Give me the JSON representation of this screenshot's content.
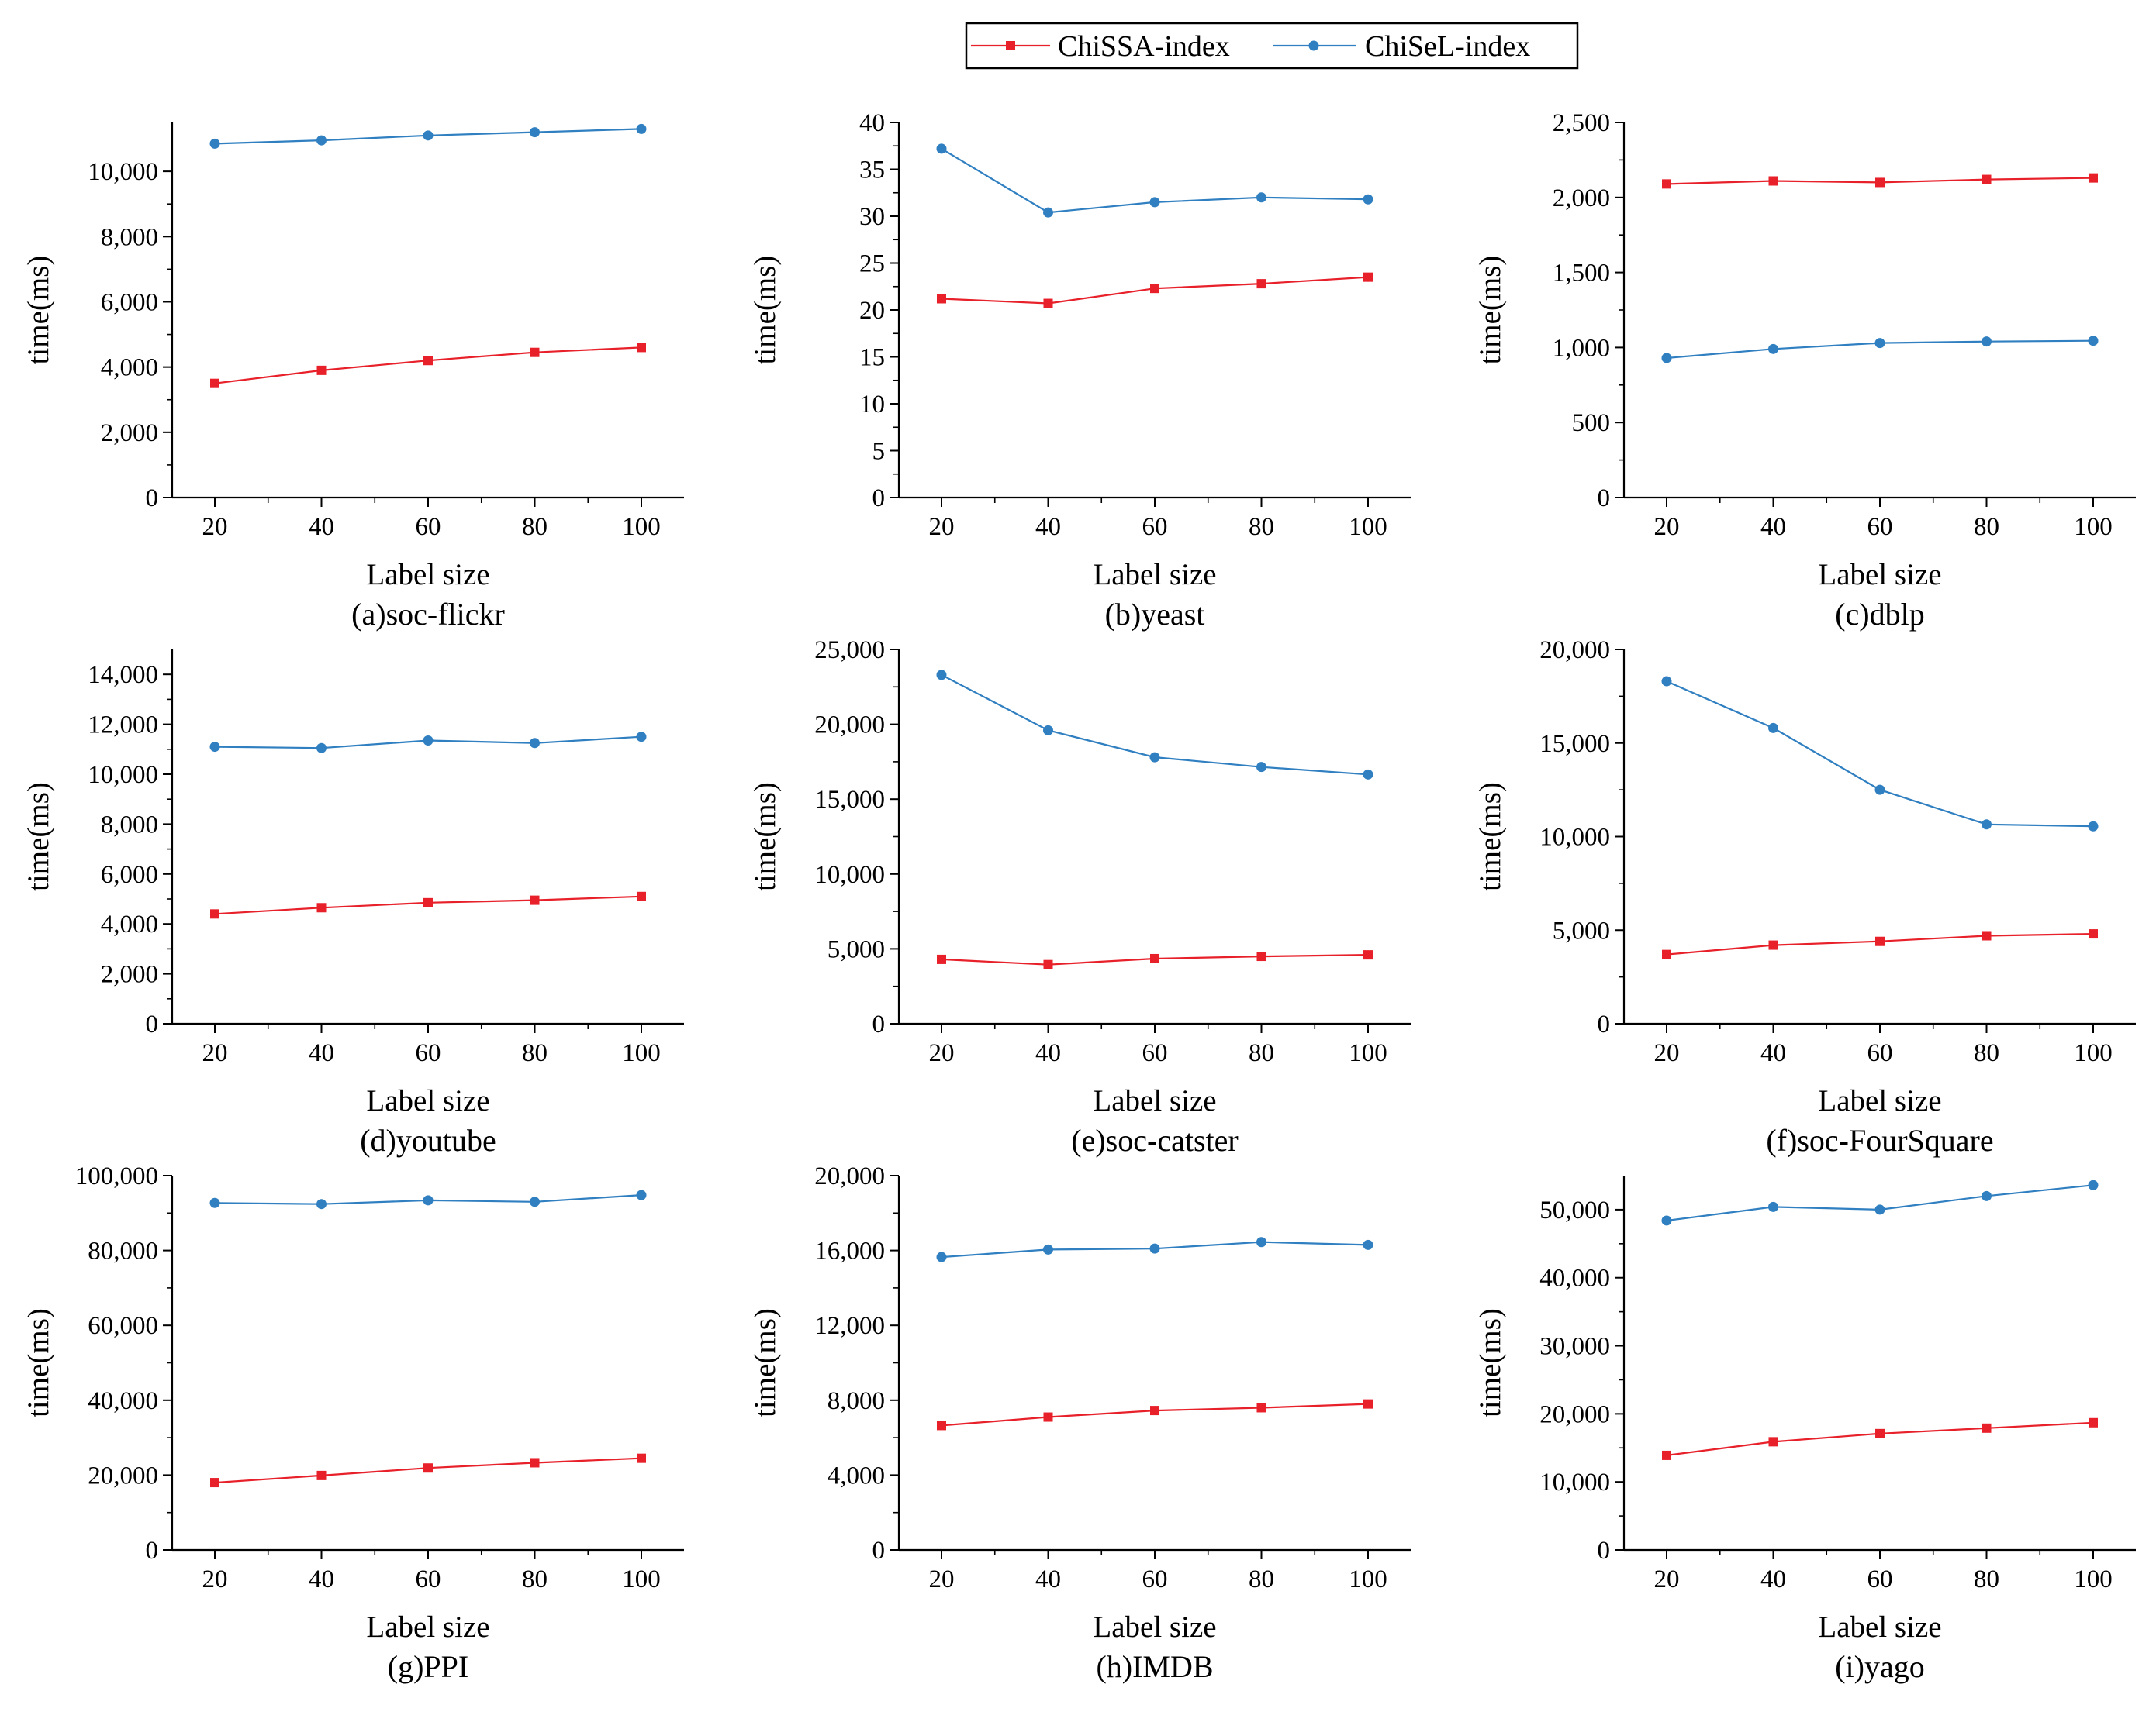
{
  "legend": {
    "entries": [
      {
        "name": "ChiSSA-index",
        "color": "#e8202a",
        "marker": "square"
      },
      {
        "name": "ChiSeL-index",
        "color": "#2f7fc1",
        "marker": "circle"
      }
    ]
  },
  "chart_data": [
    {
      "type": "line",
      "caption": "(a)soc-flickr",
      "xlabel": "Label size",
      "ylabel": "time(ms)",
      "x": [
        20,
        40,
        60,
        80,
        100
      ],
      "xlim": [
        12,
        108
      ],
      "ylim": [
        0,
        11500
      ],
      "yticks": [
        0,
        2000,
        4000,
        6000,
        8000,
        10000
      ],
      "ytick_labels": [
        "0",
        "2,000",
        "4,000",
        "6,000",
        "8,000",
        "10,000"
      ],
      "series": [
        {
          "name": "ChiSSA-index",
          "values": [
            3500,
            3900,
            4200,
            4450,
            4600
          ]
        },
        {
          "name": "ChiSeL-index",
          "values": [
            10850,
            10950,
            11100,
            11200,
            11300
          ]
        }
      ]
    },
    {
      "type": "line",
      "caption": "(b)yeast",
      "xlabel": "Label size",
      "ylabel": "time(ms)",
      "x": [
        20,
        40,
        60,
        80,
        100
      ],
      "xlim": [
        12,
        108
      ],
      "ylim": [
        0,
        40
      ],
      "yticks": [
        0,
        5,
        10,
        15,
        20,
        25,
        30,
        35,
        40
      ],
      "ytick_labels": [
        "0",
        "5",
        "10",
        "15",
        "20",
        "25",
        "30",
        "35",
        "40"
      ],
      "series": [
        {
          "name": "ChiSSA-index",
          "values": [
            21.2,
            20.7,
            22.3,
            22.8,
            23.5
          ]
        },
        {
          "name": "ChiSeL-index",
          "values": [
            37.2,
            30.4,
            31.5,
            32.0,
            31.8
          ]
        }
      ]
    },
    {
      "type": "line",
      "caption": "(c)dblp",
      "xlabel": "Label size",
      "ylabel": "time(ms)",
      "x": [
        20,
        40,
        60,
        80,
        100
      ],
      "xlim": [
        12,
        108
      ],
      "ylim": [
        0,
        2500
      ],
      "yticks": [
        0,
        500,
        1000,
        1500,
        2000,
        2500
      ],
      "ytick_labels": [
        "0",
        "500",
        "1,000",
        "1,500",
        "2,000",
        "2,500"
      ],
      "series": [
        {
          "name": "ChiSSA-index",
          "values": [
            2090,
            2110,
            2100,
            2120,
            2130
          ]
        },
        {
          "name": "ChiSeL-index",
          "values": [
            930,
            990,
            1030,
            1040,
            1045
          ]
        }
      ]
    },
    {
      "type": "line",
      "caption": "(d)youtube",
      "xlabel": "Label size",
      "ylabel": "time(ms)",
      "x": [
        20,
        40,
        60,
        80,
        100
      ],
      "xlim": [
        12,
        108
      ],
      "ylim": [
        0,
        15000
      ],
      "yticks": [
        0,
        2000,
        4000,
        6000,
        8000,
        10000,
        12000,
        14000
      ],
      "ytick_labels": [
        "0",
        "2,000",
        "4,000",
        "6,000",
        "8,000",
        "10,000",
        "12,000",
        "14,000"
      ],
      "series": [
        {
          "name": "ChiSSA-index",
          "values": [
            4400,
            4650,
            4850,
            4950,
            5100
          ]
        },
        {
          "name": "ChiSeL-index",
          "values": [
            11100,
            11050,
            11350,
            11250,
            11500
          ]
        }
      ]
    },
    {
      "type": "line",
      "caption": "(e)soc-catster",
      "xlabel": "Label size",
      "ylabel": "time(ms)",
      "x": [
        20,
        40,
        60,
        80,
        100
      ],
      "xlim": [
        12,
        108
      ],
      "ylim": [
        0,
        25000
      ],
      "yticks": [
        0,
        5000,
        10000,
        15000,
        20000,
        25000
      ],
      "ytick_labels": [
        "0",
        "5,000",
        "10,000",
        "15,000",
        "20,000",
        "25,000"
      ],
      "series": [
        {
          "name": "ChiSSA-index",
          "values": [
            4300,
            3950,
            4350,
            4500,
            4600
          ]
        },
        {
          "name": "ChiSeL-index",
          "values": [
            23300,
            19600,
            17800,
            17150,
            16650
          ]
        }
      ]
    },
    {
      "type": "line",
      "caption": "(f)soc-FourSquare",
      "xlabel": "Label size",
      "ylabel": "time(ms)",
      "x": [
        20,
        40,
        60,
        80,
        100
      ],
      "xlim": [
        12,
        108
      ],
      "ylim": [
        0,
        20000
      ],
      "yticks": [
        0,
        5000,
        10000,
        15000,
        20000
      ],
      "ytick_labels": [
        "0",
        "5,000",
        "10,000",
        "15,000",
        "20,000"
      ],
      "series": [
        {
          "name": "ChiSSA-index",
          "values": [
            3700,
            4200,
            4400,
            4700,
            4800
          ]
        },
        {
          "name": "ChiSeL-index",
          "values": [
            18300,
            15800,
            12500,
            10650,
            10550
          ]
        }
      ]
    },
    {
      "type": "line",
      "caption": "(g)PPI",
      "xlabel": "Label size",
      "ylabel": "time(ms)",
      "x": [
        20,
        40,
        60,
        80,
        100
      ],
      "xlim": [
        12,
        108
      ],
      "ylim": [
        0,
        100000
      ],
      "yticks": [
        0,
        20000,
        40000,
        60000,
        80000,
        100000
      ],
      "ytick_labels": [
        "0",
        "20,000",
        "40,000",
        "60,000",
        "80,000",
        "100,000"
      ],
      "series": [
        {
          "name": "ChiSSA-index",
          "values": [
            18000,
            19900,
            21900,
            23300,
            24500
          ]
        },
        {
          "name": "ChiSeL-index",
          "values": [
            92700,
            92400,
            93400,
            93000,
            94800
          ]
        }
      ]
    },
    {
      "type": "line",
      "caption": "(h)IMDB",
      "xlabel": "Label size",
      "ylabel": "time(ms)",
      "x": [
        20,
        40,
        60,
        80,
        100
      ],
      "xlim": [
        12,
        108
      ],
      "ylim": [
        0,
        20000
      ],
      "yticks": [
        0,
        4000,
        8000,
        12000,
        16000,
        20000
      ],
      "ytick_labels": [
        "0",
        "4,000",
        "8,000",
        "12,000",
        "16,000",
        "20,000"
      ],
      "series": [
        {
          "name": "ChiSSA-index",
          "values": [
            6650,
            7100,
            7450,
            7600,
            7800
          ]
        },
        {
          "name": "ChiSeL-index",
          "values": [
            15650,
            16050,
            16100,
            16450,
            16300
          ]
        }
      ]
    },
    {
      "type": "line",
      "caption": "(i)yago",
      "xlabel": "Label size",
      "ylabel": "time(ms)",
      "x": [
        20,
        40,
        60,
        80,
        100
      ],
      "xlim": [
        12,
        108
      ],
      "ylim": [
        0,
        55000
      ],
      "yticks": [
        0,
        10000,
        20000,
        30000,
        40000,
        50000
      ],
      "ytick_labels": [
        "0",
        "10,000",
        "20,000",
        "30,000",
        "40,000",
        "50,000"
      ],
      "series": [
        {
          "name": "ChiSSA-index",
          "values": [
            13900,
            15900,
            17100,
            17900,
            18700
          ]
        },
        {
          "name": "ChiSeL-index",
          "values": [
            48400,
            50400,
            50000,
            52000,
            53600
          ]
        }
      ]
    }
  ]
}
